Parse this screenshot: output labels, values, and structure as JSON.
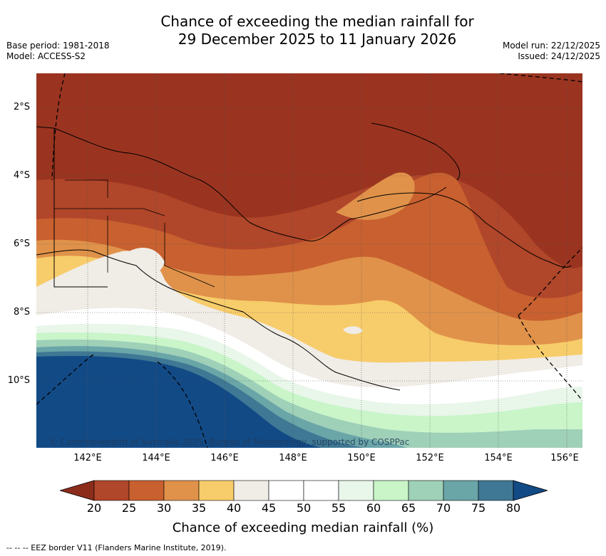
{
  "title": {
    "line1": "Chance of exceeding the median rainfall for",
    "line2": "29 December 2025 to 11 January 2026"
  },
  "meta_left": {
    "base_period": "Base period: 1981-2018",
    "model": "Model: ACCESS-S2"
  },
  "meta_right": {
    "model_run": "Model run: 22/12/2025",
    "issued": "Issued: 24/12/2025"
  },
  "map": {
    "region": "Papua New Guinea and surrounding waters",
    "lat_labels": [
      "2°S",
      "4°S",
      "6°S",
      "8°S",
      "10°S"
    ],
    "lon_labels": [
      "142°E",
      "144°E",
      "146°E",
      "148°E",
      "150°E",
      "152°E",
      "154°E",
      "156°E"
    ],
    "copyright": "© Commonwealth of Australia 2025, Bureau of Meteorology, supported by COSPPac"
  },
  "colorbar": {
    "ticks": [
      "20",
      "25",
      "30",
      "35",
      "40",
      "45",
      "50",
      "55",
      "60",
      "65",
      "70",
      "75",
      "80"
    ],
    "colors": [
      "#8c2d1c",
      "#b0462a",
      "#c8602f",
      "#e0924a",
      "#f7cc6a",
      "#f0ece6",
      "#ffffff",
      "#ffffff",
      "#e9f6ea",
      "#c9f5c9",
      "#9fd0b8",
      "#6aa5a8",
      "#3f7894",
      "#124a86"
    ],
    "label": "Chance of exceeding median rainfall (%)"
  },
  "footnote": "--  --  -- EEZ border V11 (Flanders Marine Institute, 2019)."
}
